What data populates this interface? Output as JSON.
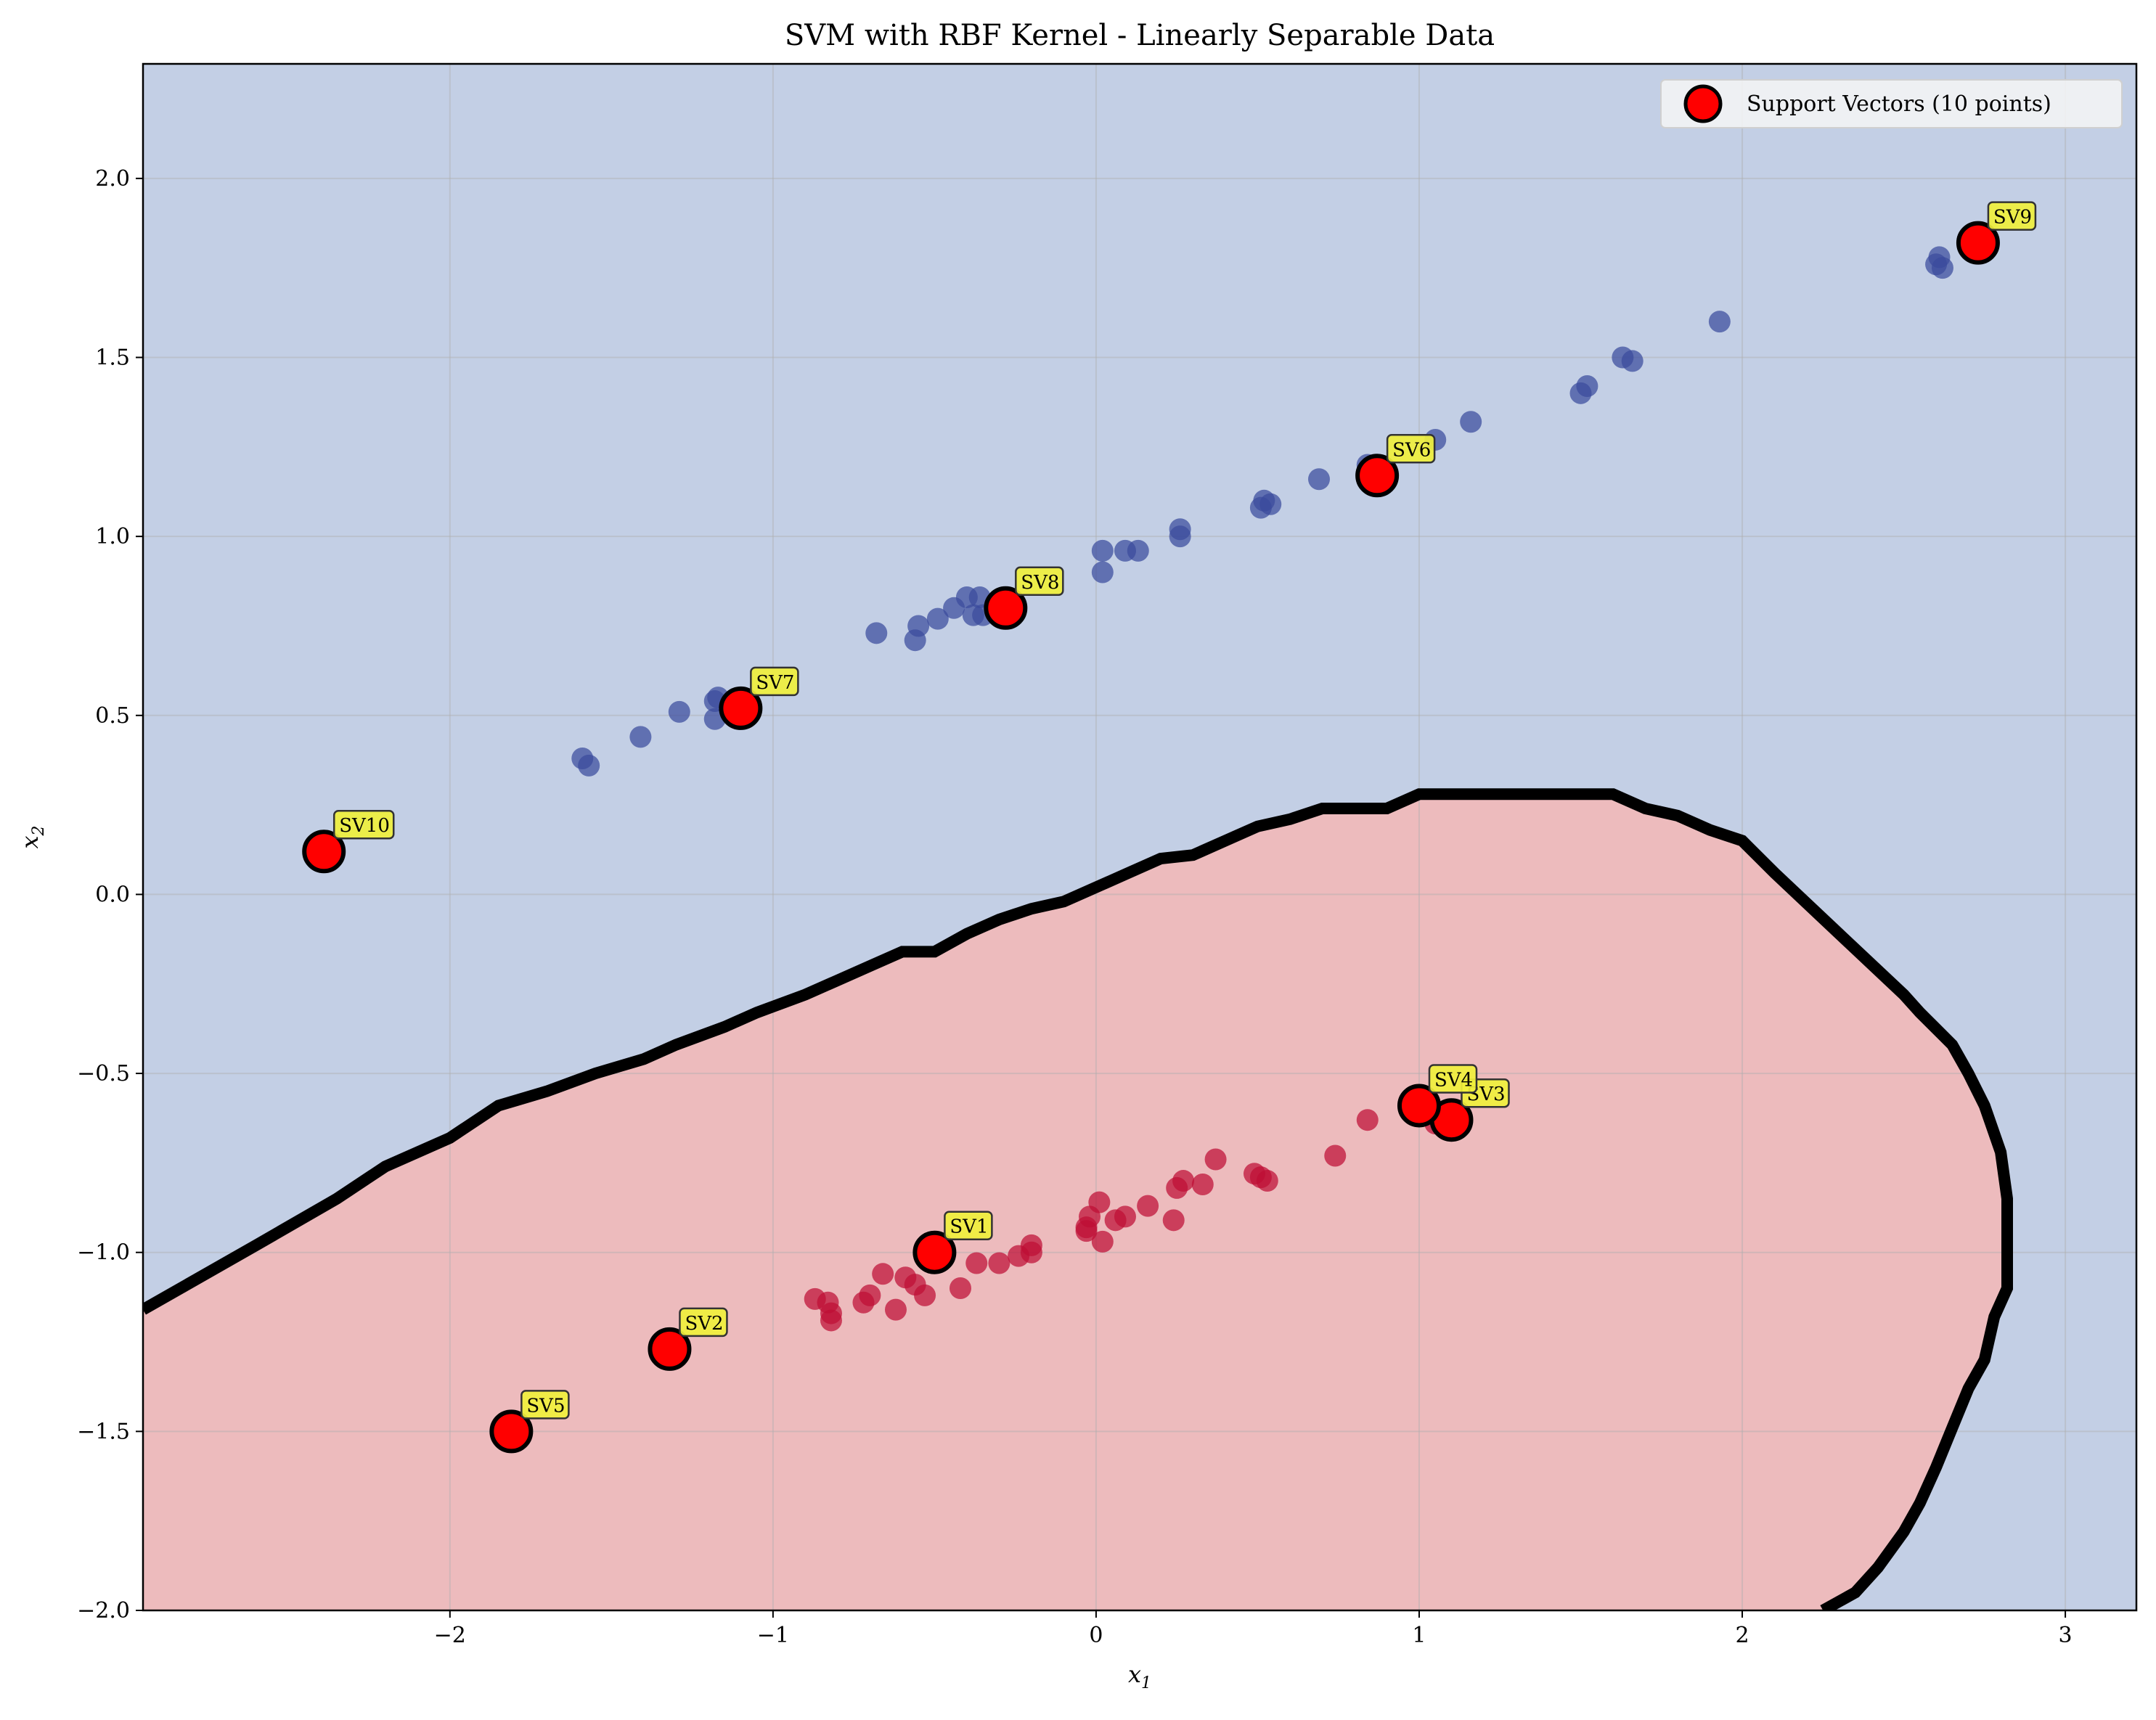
{
  "chart_data": {
    "type": "scatter",
    "title": "SVM with RBF Kernel - Linearly Separable Data",
    "xlabel_main": "x",
    "xlabel_sub": "1",
    "ylabel_main": "x",
    "ylabel_sub": "2",
    "xlim": [
      -2.95,
      3.22
    ],
    "ylim": [
      -2.0,
      2.32
    ],
    "xticks": [
      -2,
      -1,
      0,
      1,
      2,
      3
    ],
    "xtick_labels": [
      "−2",
      "−1",
      "0",
      "1",
      "2",
      "3"
    ],
    "yticks": [
      -2.0,
      -1.5,
      -1.0,
      -0.5,
      0.0,
      0.5,
      1.0,
      1.5,
      2.0
    ],
    "ytick_labels": [
      "−2.0",
      "−1.5",
      "−1.0",
      "−0.5",
      "0.0",
      "0.5",
      "1.0",
      "1.5",
      "2.0"
    ],
    "grid": true,
    "legend_position": "top-right",
    "legend_label": "Support Vectors (10 points)",
    "colors": {
      "blue_region": "#c3cfe5",
      "red_region": "#edbbbd",
      "blue_points": "#3a4b9c",
      "red_points": "#be0e35",
      "support_vector_fill": "#ff0000",
      "sv_label_bg": "#f0f03c",
      "boundary": "#000000"
    },
    "decision_boundary": [
      [
        -2.95,
        -1.16
      ],
      [
        -2.6,
        -0.98
      ],
      [
        -2.35,
        -0.85
      ],
      [
        -2.2,
        -0.76
      ],
      [
        -2.0,
        -0.68
      ],
      [
        -1.85,
        -0.59
      ],
      [
        -1.7,
        -0.55
      ],
      [
        -1.55,
        -0.5
      ],
      [
        -1.4,
        -0.46
      ],
      [
        -1.3,
        -0.42
      ],
      [
        -1.15,
        -0.37
      ],
      [
        -1.05,
        -0.33
      ],
      [
        -0.9,
        -0.28
      ],
      [
        -0.8,
        -0.24
      ],
      [
        -0.7,
        -0.2
      ],
      [
        -0.6,
        -0.16
      ],
      [
        -0.5,
        -0.16
      ],
      [
        -0.4,
        -0.11
      ],
      [
        -0.3,
        -0.07
      ],
      [
        -0.2,
        -0.04
      ],
      [
        -0.1,
        -0.02
      ],
      [
        0.0,
        0.02
      ],
      [
        0.1,
        0.06
      ],
      [
        0.2,
        0.1
      ],
      [
        0.3,
        0.11
      ],
      [
        0.4,
        0.15
      ],
      [
        0.5,
        0.19
      ],
      [
        0.6,
        0.21
      ],
      [
        0.7,
        0.24
      ],
      [
        0.9,
        0.24
      ],
      [
        1.0,
        0.28
      ],
      [
        1.6,
        0.28
      ],
      [
        1.7,
        0.24
      ],
      [
        1.8,
        0.22
      ],
      [
        1.9,
        0.18
      ],
      [
        2.0,
        0.15
      ],
      [
        2.1,
        0.06
      ],
      [
        2.3,
        -0.11
      ],
      [
        2.5,
        -0.28
      ],
      [
        2.55,
        -0.33
      ],
      [
        2.65,
        -0.42
      ],
      [
        2.7,
        -0.5
      ],
      [
        2.75,
        -0.59
      ],
      [
        2.8,
        -0.72
      ],
      [
        2.82,
        -0.85
      ],
      [
        2.82,
        -1.1
      ],
      [
        2.78,
        -1.18
      ],
      [
        2.75,
        -1.3
      ],
      [
        2.7,
        -1.38
      ],
      [
        2.65,
        -1.49
      ],
      [
        2.6,
        -1.6
      ],
      [
        2.55,
        -1.7
      ],
      [
        2.5,
        -1.78
      ],
      [
        2.42,
        -1.88
      ],
      [
        2.35,
        -1.95
      ],
      [
        2.25,
        -2.0
      ]
    ],
    "series": [
      {
        "class": "blue",
        "points": [
          [
            -1.59,
            0.38
          ],
          [
            -1.57,
            0.36
          ],
          [
            -1.41,
            0.44
          ],
          [
            -1.29,
            0.51
          ],
          [
            -1.18,
            0.54
          ],
          [
            -1.17,
            0.55
          ],
          [
            -1.18,
            0.49
          ],
          [
            -1.12,
            0.54
          ],
          [
            -0.68,
            0.73
          ],
          [
            -0.56,
            0.71
          ],
          [
            -0.55,
            0.75
          ],
          [
            -0.49,
            0.77
          ],
          [
            -0.44,
            0.8
          ],
          [
            -0.4,
            0.83
          ],
          [
            -0.38,
            0.78
          ],
          [
            -0.36,
            0.83
          ],
          [
            -0.35,
            0.78
          ],
          [
            0.02,
            0.96
          ],
          [
            0.02,
            0.9
          ],
          [
            0.09,
            0.96
          ],
          [
            0.13,
            0.96
          ],
          [
            0.26,
            1.0
          ],
          [
            0.26,
            1.02
          ],
          [
            0.51,
            1.08
          ],
          [
            0.52,
            1.1
          ],
          [
            0.54,
            1.09
          ],
          [
            0.69,
            1.16
          ],
          [
            0.84,
            1.2
          ],
          [
            1.05,
            1.27
          ],
          [
            1.16,
            1.32
          ],
          [
            1.5,
            1.4
          ],
          [
            1.52,
            1.42
          ],
          [
            1.63,
            1.5
          ],
          [
            1.66,
            1.49
          ],
          [
            1.93,
            1.6
          ],
          [
            2.6,
            1.76
          ],
          [
            2.61,
            1.78
          ],
          [
            2.62,
            1.75
          ]
        ]
      },
      {
        "class": "red",
        "points": [
          [
            -0.87,
            -1.13
          ],
          [
            -0.83,
            -1.14
          ],
          [
            -0.82,
            -1.17
          ],
          [
            -0.82,
            -1.19
          ],
          [
            -0.72,
            -1.14
          ],
          [
            -0.7,
            -1.12
          ],
          [
            -0.66,
            -1.06
          ],
          [
            -0.62,
            -1.16
          ],
          [
            -0.59,
            -1.07
          ],
          [
            -0.56,
            -1.09
          ],
          [
            -0.53,
            -1.12
          ],
          [
            -0.42,
            -1.1
          ],
          [
            -0.37,
            -1.03
          ],
          [
            -0.3,
            -1.03
          ],
          [
            -0.24,
            -1.01
          ],
          [
            -0.2,
            -0.98
          ],
          [
            -0.2,
            -1.0
          ],
          [
            -0.03,
            -0.94
          ],
          [
            -0.03,
            -0.93
          ],
          [
            -0.02,
            -0.9
          ],
          [
            0.01,
            -0.86
          ],
          [
            0.02,
            -0.97
          ],
          [
            0.06,
            -0.91
          ],
          [
            0.09,
            -0.9
          ],
          [
            0.16,
            -0.87
          ],
          [
            0.24,
            -0.91
          ],
          [
            0.25,
            -0.82
          ],
          [
            0.27,
            -0.8
          ],
          [
            0.33,
            -0.81
          ],
          [
            0.37,
            -0.74
          ],
          [
            0.49,
            -0.78
          ],
          [
            0.51,
            -0.79
          ],
          [
            0.53,
            -0.8
          ],
          [
            0.74,
            -0.73
          ],
          [
            0.84,
            -0.63
          ],
          [
            1.05,
            -0.64
          ],
          [
            1.07,
            -0.61
          ]
        ]
      }
    ],
    "support_vectors": [
      {
        "label": "SV1",
        "x": -0.5,
        "y": -1.0
      },
      {
        "label": "SV2",
        "x": -1.32,
        "y": -1.27
      },
      {
        "label": "SV3",
        "x": 1.1,
        "y": -0.63
      },
      {
        "label": "SV4",
        "x": 1.0,
        "y": -0.59
      },
      {
        "label": "SV5",
        "x": -1.81,
        "y": -1.5
      },
      {
        "label": "SV6",
        "x": 0.87,
        "y": 1.17
      },
      {
        "label": "SV7",
        "x": -1.1,
        "y": 0.52
      },
      {
        "label": "SV8",
        "x": -0.28,
        "y": 0.8
      },
      {
        "label": "SV9",
        "x": 2.73,
        "y": 1.82
      },
      {
        "label": "SV10",
        "x": -2.39,
        "y": 0.12
      }
    ]
  }
}
